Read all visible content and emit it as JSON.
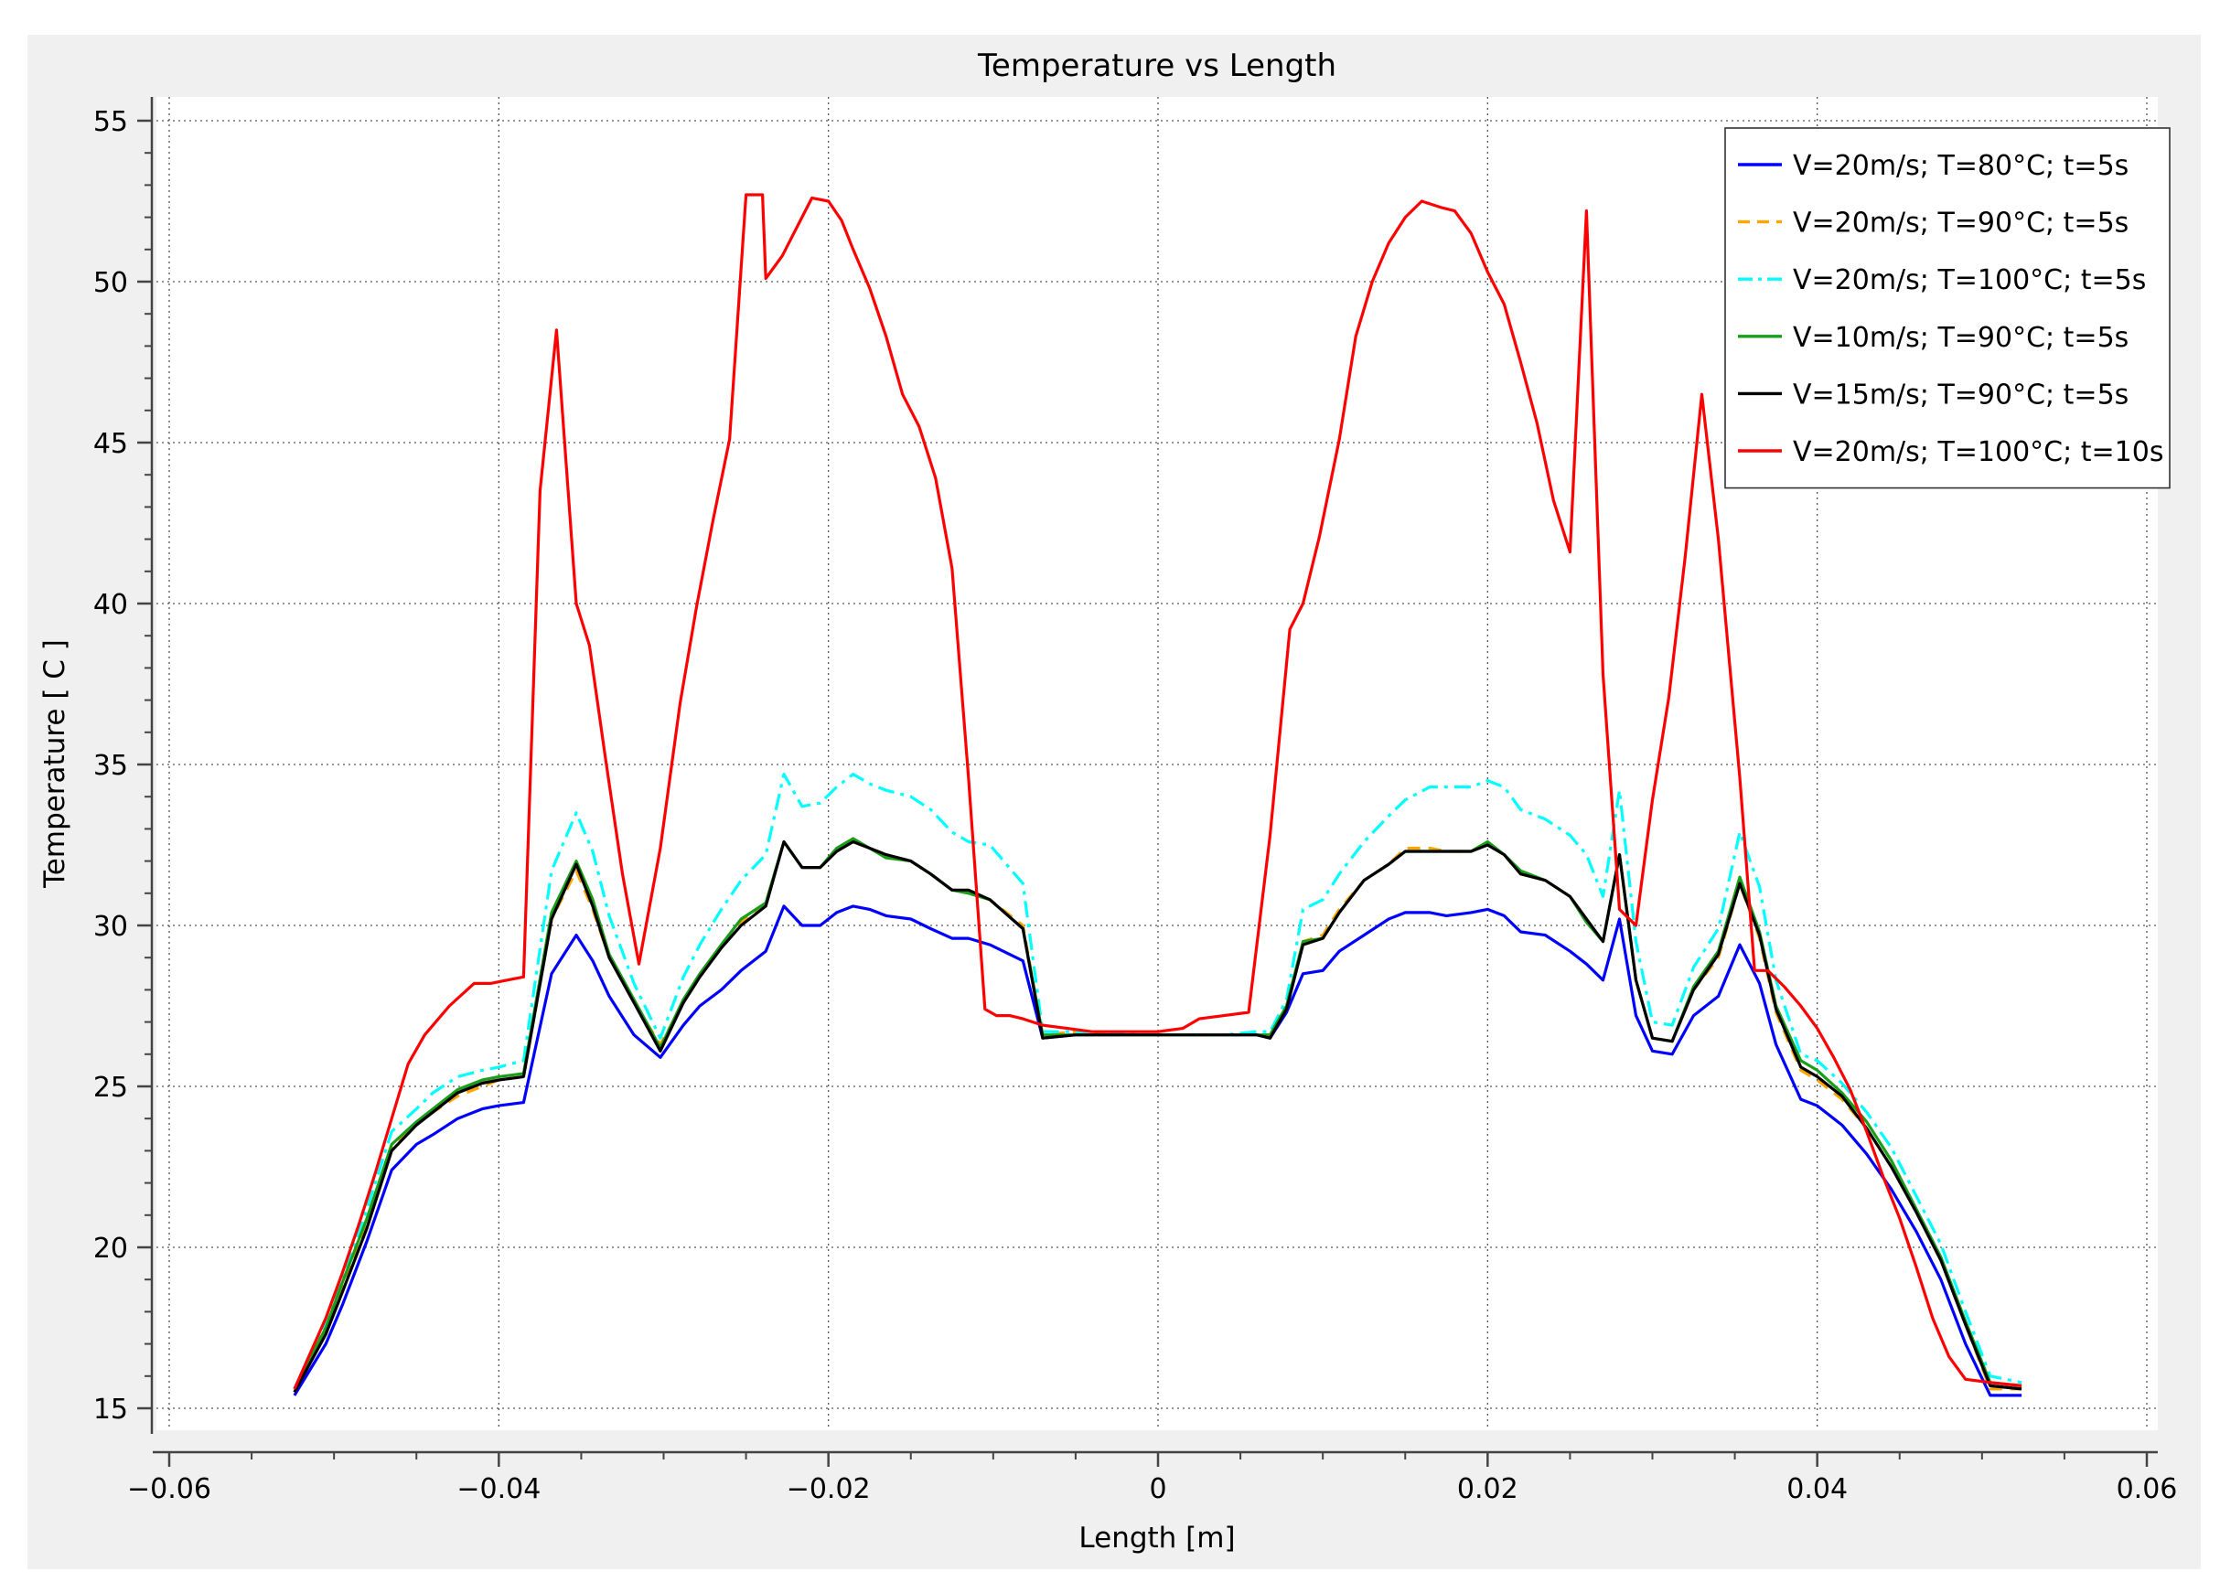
{
  "chart_data": {
    "type": "line",
    "title": "Temperature vs Length",
    "xlabel": "Length [m]",
    "ylabel": "Temperature [ C ]",
    "xlim": [
      -0.06,
      0.06
    ],
    "ylim": [
      15,
      55
    ],
    "xticks": [
      -0.06,
      -0.04,
      -0.02,
      0,
      0.02,
      0.04,
      0.06
    ],
    "xtick_labels": [
      "−0.06",
      "−0.04",
      "−0.02",
      "0",
      "0.02",
      "0.04",
      "0.06"
    ],
    "yticks": [
      15,
      20,
      25,
      30,
      35,
      40,
      45,
      50,
      55
    ],
    "ytick_labels": [
      "15",
      "20",
      "25",
      "30",
      "35",
      "40",
      "45",
      "50",
      "55"
    ],
    "grid": true,
    "legend_position": "top-right",
    "series": [
      {
        "name": "V=20m/s; T=80°C; t=5s",
        "color": "#0000ff",
        "dash": "solid",
        "x": [
          -0.0524,
          -0.0505,
          -0.0495,
          -0.048,
          -0.0465,
          -0.045,
          -0.044,
          -0.0425,
          -0.041,
          -0.04,
          -0.0385,
          -0.0368,
          -0.0353,
          -0.0343,
          -0.0333,
          -0.0318,
          -0.0302,
          -0.0288,
          -0.0278,
          -0.0265,
          -0.0253,
          -0.0238,
          -0.0227,
          -0.0216,
          -0.0205,
          -0.0195,
          -0.0185,
          -0.0175,
          -0.0165,
          -0.015,
          -0.0138,
          -0.0125,
          -0.0115,
          -0.0102,
          -0.0082,
          -0.007,
          -0.005,
          -0.003,
          -0.001,
          0.0,
          0.002,
          0.004,
          0.006,
          0.0068,
          0.0078,
          0.0088,
          0.01,
          0.011,
          0.0125,
          0.014,
          0.015,
          0.0165,
          0.0175,
          0.019,
          0.02,
          0.021,
          0.022,
          0.0235,
          0.025,
          0.026,
          0.027,
          0.028,
          0.029,
          0.03,
          0.0312,
          0.0325,
          0.034,
          0.0353,
          0.0365,
          0.0375,
          0.039,
          0.04,
          0.0415,
          0.043,
          0.0445,
          0.046,
          0.0475,
          0.049,
          0.0505,
          0.0524
        ],
        "y": [
          15.4,
          17.0,
          18.2,
          20.2,
          22.4,
          23.2,
          23.5,
          24.0,
          24.3,
          24.4,
          24.5,
          28.5,
          29.7,
          28.9,
          27.8,
          26.6,
          25.9,
          26.9,
          27.5,
          28.0,
          28.6,
          29.2,
          30.6,
          30.0,
          30.0,
          30.4,
          30.6,
          30.5,
          30.3,
          30.2,
          29.9,
          29.6,
          29.6,
          29.4,
          28.9,
          26.5,
          26.6,
          26.6,
          26.6,
          26.6,
          26.6,
          26.6,
          26.6,
          26.5,
          27.3,
          28.5,
          28.6,
          29.2,
          29.7,
          30.2,
          30.4,
          30.4,
          30.3,
          30.4,
          30.5,
          30.3,
          29.8,
          29.7,
          29.2,
          28.8,
          28.3,
          30.2,
          27.2,
          26.1,
          26.0,
          27.2,
          27.8,
          29.4,
          28.2,
          26.3,
          24.6,
          24.4,
          23.8,
          22.9,
          21.8,
          20.5,
          19.0,
          17.0,
          15.4,
          15.4
        ]
      },
      {
        "name": "V=20m/s; T=90°C; t=5s",
        "color": "#ffa500",
        "dash": "dashed",
        "x": [
          -0.0524,
          -0.0505,
          -0.0495,
          -0.048,
          -0.0465,
          -0.045,
          -0.044,
          -0.0425,
          -0.041,
          -0.04,
          -0.0385,
          -0.0368,
          -0.0353,
          -0.0343,
          -0.0333,
          -0.0318,
          -0.0302,
          -0.0288,
          -0.0278,
          -0.0265,
          -0.0253,
          -0.0238,
          -0.0227,
          -0.0216,
          -0.0205,
          -0.0195,
          -0.0185,
          -0.0175,
          -0.0165,
          -0.015,
          -0.0138,
          -0.0125,
          -0.0115,
          -0.0102,
          -0.0082,
          -0.007,
          -0.005,
          -0.003,
          -0.001,
          0.0,
          0.002,
          0.004,
          0.006,
          0.0068,
          0.0078,
          0.0088,
          0.01,
          0.011,
          0.0125,
          0.014,
          0.015,
          0.0165,
          0.0175,
          0.019,
          0.02,
          0.021,
          0.022,
          0.0235,
          0.025,
          0.026,
          0.027,
          0.028,
          0.029,
          0.03,
          0.0312,
          0.0325,
          0.034,
          0.0353,
          0.0365,
          0.0375,
          0.039,
          0.04,
          0.0415,
          0.043,
          0.0445,
          0.046,
          0.0475,
          0.049,
          0.0505,
          0.0524
        ],
        "y": [
          15.5,
          17.4,
          18.7,
          20.7,
          23.1,
          23.8,
          24.2,
          24.7,
          25.0,
          25.2,
          25.3,
          30.2,
          31.7,
          30.5,
          29.0,
          27.6,
          26.3,
          27.6,
          28.4,
          29.3,
          30.1,
          30.7,
          32.6,
          31.8,
          31.8,
          32.3,
          32.6,
          32.4,
          32.2,
          32.0,
          31.6,
          31.1,
          31.1,
          30.8,
          30.0,
          26.6,
          26.7,
          26.6,
          26.6,
          26.6,
          26.6,
          26.6,
          26.6,
          26.6,
          27.4,
          29.5,
          29.7,
          30.5,
          31.4,
          31.9,
          32.4,
          32.4,
          32.3,
          32.3,
          32.6,
          32.2,
          31.6,
          31.4,
          30.9,
          30.2,
          29.5,
          32.2,
          28.3,
          26.5,
          26.4,
          28.0,
          29.0,
          31.3,
          29.6,
          27.3,
          25.5,
          25.2,
          24.6,
          23.7,
          22.5,
          21.1,
          19.6,
          17.6,
          15.6,
          15.6
        ]
      },
      {
        "name": "V=20m/s; T=100°C; t=5s",
        "color": "#00ffff",
        "dash": "dashdot",
        "x": [
          -0.0524,
          -0.0505,
          -0.0495,
          -0.048,
          -0.0465,
          -0.045,
          -0.044,
          -0.0425,
          -0.041,
          -0.04,
          -0.0385,
          -0.0368,
          -0.0353,
          -0.0343,
          -0.0333,
          -0.0318,
          -0.0302,
          -0.0288,
          -0.0278,
          -0.0265,
          -0.0253,
          -0.0238,
          -0.0227,
          -0.0216,
          -0.0205,
          -0.0195,
          -0.0185,
          -0.0175,
          -0.0165,
          -0.015,
          -0.0138,
          -0.0125,
          -0.0115,
          -0.0102,
          -0.0082,
          -0.007,
          -0.005,
          -0.003,
          -0.001,
          0.0,
          0.002,
          0.004,
          0.006,
          0.0068,
          0.0078,
          0.0088,
          0.01,
          0.011,
          0.0125,
          0.014,
          0.015,
          0.0165,
          0.0175,
          0.019,
          0.02,
          0.021,
          0.022,
          0.0235,
          0.025,
          0.026,
          0.027,
          0.028,
          0.029,
          0.03,
          0.0312,
          0.0325,
          0.034,
          0.0353,
          0.0365,
          0.0375,
          0.039,
          0.04,
          0.0415,
          0.043,
          0.0445,
          0.046,
          0.0475,
          0.049,
          0.0505,
          0.0524
        ],
        "y": [
          15.6,
          17.6,
          19.0,
          21.2,
          23.6,
          24.3,
          24.8,
          25.3,
          25.5,
          25.6,
          25.8,
          31.7,
          33.5,
          32.3,
          30.3,
          28.2,
          26.5,
          28.4,
          29.4,
          30.5,
          31.4,
          32.2,
          34.7,
          33.7,
          33.8,
          34.3,
          34.7,
          34.4,
          34.2,
          34.0,
          33.6,
          32.9,
          32.6,
          32.5,
          31.3,
          26.7,
          26.7,
          26.7,
          26.6,
          26.6,
          26.6,
          26.6,
          26.7,
          26.7,
          27.7,
          30.5,
          30.8,
          31.6,
          32.6,
          33.4,
          33.9,
          34.3,
          34.3,
          34.3,
          34.5,
          34.3,
          33.6,
          33.3,
          32.8,
          32.2,
          30.9,
          34.2,
          29.5,
          27.0,
          26.9,
          28.7,
          29.9,
          32.9,
          31.2,
          28.3,
          26.0,
          25.8,
          25.1,
          24.2,
          23.1,
          21.6,
          20.1,
          18.0,
          16.0,
          15.8
        ]
      },
      {
        "name": "V=10m/s; T=90°C; t=5s",
        "color": "#1a9e1a",
        "dash": "solid",
        "x": [
          -0.0524,
          -0.0505,
          -0.0495,
          -0.048,
          -0.0465,
          -0.045,
          -0.044,
          -0.0425,
          -0.041,
          -0.04,
          -0.0385,
          -0.0368,
          -0.0353,
          -0.0343,
          -0.0333,
          -0.0318,
          -0.0302,
          -0.0288,
          -0.0278,
          -0.0265,
          -0.0253,
          -0.0238,
          -0.0227,
          -0.0216,
          -0.0205,
          -0.0195,
          -0.0185,
          -0.0175,
          -0.0165,
          -0.015,
          -0.0138,
          -0.0125,
          -0.0115,
          -0.0102,
          -0.0082,
          -0.007,
          -0.005,
          -0.003,
          -0.001,
          0.0,
          0.002,
          0.004,
          0.006,
          0.0068,
          0.0078,
          0.0088,
          0.01,
          0.011,
          0.0125,
          0.014,
          0.015,
          0.0165,
          0.0175,
          0.019,
          0.02,
          0.021,
          0.022,
          0.0235,
          0.025,
          0.026,
          0.027,
          0.028,
          0.029,
          0.03,
          0.0312,
          0.0325,
          0.034,
          0.0353,
          0.0365,
          0.0375,
          0.039,
          0.04,
          0.0415,
          0.043,
          0.0445,
          0.046,
          0.0475,
          0.049,
          0.0505,
          0.0524
        ],
        "y": [
          15.6,
          17.5,
          18.9,
          20.9,
          23.2,
          23.9,
          24.3,
          24.9,
          25.2,
          25.3,
          25.4,
          30.4,
          32.0,
          30.8,
          29.1,
          27.7,
          26.2,
          27.7,
          28.5,
          29.4,
          30.2,
          30.7,
          32.6,
          31.8,
          31.8,
          32.4,
          32.7,
          32.4,
          32.1,
          32.0,
          31.6,
          31.1,
          31.0,
          30.8,
          29.9,
          26.6,
          26.6,
          26.6,
          26.6,
          26.6,
          26.6,
          26.6,
          26.6,
          26.6,
          27.5,
          29.5,
          29.6,
          30.4,
          31.4,
          31.9,
          32.3,
          32.3,
          32.3,
          32.3,
          32.6,
          32.2,
          31.7,
          31.4,
          30.9,
          30.1,
          29.5,
          32.2,
          28.3,
          26.5,
          26.4,
          28.1,
          29.2,
          31.5,
          29.8,
          27.5,
          25.8,
          25.5,
          24.8,
          23.9,
          22.7,
          21.2,
          19.7,
          17.7,
          15.8,
          15.7
        ]
      },
      {
        "name": "V=15m/s; T=90°C; t=5s",
        "color": "#000000",
        "dash": "solid",
        "x": [
          -0.0524,
          -0.0505,
          -0.0495,
          -0.048,
          -0.0465,
          -0.045,
          -0.044,
          -0.0425,
          -0.041,
          -0.04,
          -0.0385,
          -0.0368,
          -0.0353,
          -0.0343,
          -0.0333,
          -0.0318,
          -0.0302,
          -0.0288,
          -0.0278,
          -0.0265,
          -0.0253,
          -0.0238,
          -0.0227,
          -0.0216,
          -0.0205,
          -0.0195,
          -0.0185,
          -0.0175,
          -0.0165,
          -0.015,
          -0.0138,
          -0.0125,
          -0.0115,
          -0.0102,
          -0.0082,
          -0.007,
          -0.005,
          -0.003,
          -0.001,
          0.0,
          0.002,
          0.004,
          0.006,
          0.0068,
          0.0078,
          0.0088,
          0.01,
          0.011,
          0.0125,
          0.014,
          0.015,
          0.0165,
          0.0175,
          0.019,
          0.02,
          0.021,
          0.022,
          0.0235,
          0.025,
          0.026,
          0.027,
          0.028,
          0.029,
          0.03,
          0.0312,
          0.0325,
          0.034,
          0.0353,
          0.0365,
          0.0375,
          0.039,
          0.04,
          0.0415,
          0.043,
          0.0445,
          0.046,
          0.0475,
          0.049,
          0.0505,
          0.0524
        ],
        "y": [
          15.5,
          17.3,
          18.6,
          20.6,
          23.0,
          23.8,
          24.2,
          24.8,
          25.1,
          25.2,
          25.3,
          30.2,
          31.9,
          30.6,
          29.0,
          27.6,
          26.1,
          27.6,
          28.4,
          29.3,
          30.0,
          30.6,
          32.6,
          31.8,
          31.8,
          32.3,
          32.6,
          32.4,
          32.2,
          32.0,
          31.6,
          31.1,
          31.1,
          30.8,
          29.9,
          26.5,
          26.6,
          26.6,
          26.6,
          26.6,
          26.6,
          26.6,
          26.6,
          26.5,
          27.4,
          29.4,
          29.6,
          30.4,
          31.4,
          31.9,
          32.3,
          32.3,
          32.3,
          32.3,
          32.5,
          32.2,
          31.6,
          31.4,
          30.9,
          30.2,
          29.5,
          32.2,
          28.3,
          26.5,
          26.4,
          28.0,
          29.1,
          31.3,
          29.7,
          27.4,
          25.6,
          25.3,
          24.7,
          23.7,
          22.5,
          21.1,
          19.6,
          17.6,
          15.7,
          15.6
        ]
      },
      {
        "name": "V=20m/s; T=100°C; t=10s",
        "color": "#ff0000",
        "dash": "solid",
        "x": [
          -0.0524,
          -0.0505,
          -0.0495,
          -0.0485,
          -0.0475,
          -0.0465,
          -0.0455,
          -0.0445,
          -0.043,
          -0.0415,
          -0.0405,
          -0.0395,
          -0.0385,
          -0.0375,
          -0.0365,
          -0.0353,
          -0.0345,
          -0.0335,
          -0.0325,
          -0.0315,
          -0.0302,
          -0.029,
          -0.028,
          -0.027,
          -0.026,
          -0.025,
          -0.024,
          -0.0238,
          -0.0228,
          -0.0218,
          -0.021,
          -0.02,
          -0.0192,
          -0.0185,
          -0.0175,
          -0.0165,
          -0.0155,
          -0.0145,
          -0.0135,
          -0.0125,
          -0.0115,
          -0.0105,
          -0.0098,
          -0.009,
          -0.0082,
          -0.007,
          -0.0055,
          -0.004,
          -0.003,
          -0.0015,
          0.0,
          0.0015,
          0.0025,
          0.004,
          0.0055,
          0.0068,
          0.008,
          0.0088,
          0.0098,
          0.011,
          0.012,
          0.013,
          0.014,
          0.015,
          0.016,
          0.0172,
          0.018,
          0.019,
          0.02,
          0.021,
          0.022,
          0.023,
          0.024,
          0.025,
          0.026,
          0.027,
          0.028,
          0.029,
          0.03,
          0.031,
          0.032,
          0.033,
          0.034,
          0.0353,
          0.0362,
          0.037,
          0.038,
          0.039,
          0.04,
          0.041,
          0.042,
          0.043,
          0.044,
          0.045,
          0.046,
          0.047,
          0.048,
          0.049,
          0.0505,
          0.0524
        ],
        "y": [
          15.6,
          17.8,
          19.2,
          20.7,
          22.3,
          24.0,
          25.7,
          26.6,
          27.5,
          28.2,
          28.2,
          28.3,
          28.4,
          43.5,
          48.5,
          40.0,
          38.7,
          35.1,
          31.6,
          28.8,
          32.4,
          36.9,
          39.9,
          42.6,
          45.1,
          52.7,
          52.7,
          50.1,
          50.8,
          51.8,
          52.6,
          52.5,
          51.9,
          51.0,
          49.8,
          48.3,
          46.5,
          45.5,
          43.9,
          41.1,
          34.6,
          27.4,
          27.2,
          27.2,
          27.1,
          26.9,
          26.8,
          26.7,
          26.7,
          26.7,
          26.7,
          26.8,
          27.1,
          27.2,
          27.3,
          32.8,
          39.2,
          40.0,
          42.1,
          45.1,
          48.3,
          50.0,
          51.2,
          52.0,
          52.5,
          52.3,
          52.2,
          51.5,
          50.3,
          49.3,
          47.5,
          45.6,
          43.2,
          41.6,
          52.2,
          37.8,
          30.5,
          30.0,
          33.9,
          37.1,
          41.5,
          46.5,
          42.0,
          34.6,
          28.6,
          28.6,
          28.1,
          27.5,
          26.8,
          25.9,
          24.9,
          23.6,
          22.2,
          20.9,
          19.4,
          17.8,
          16.6,
          15.9,
          15.8,
          15.7
        ]
      }
    ]
  }
}
